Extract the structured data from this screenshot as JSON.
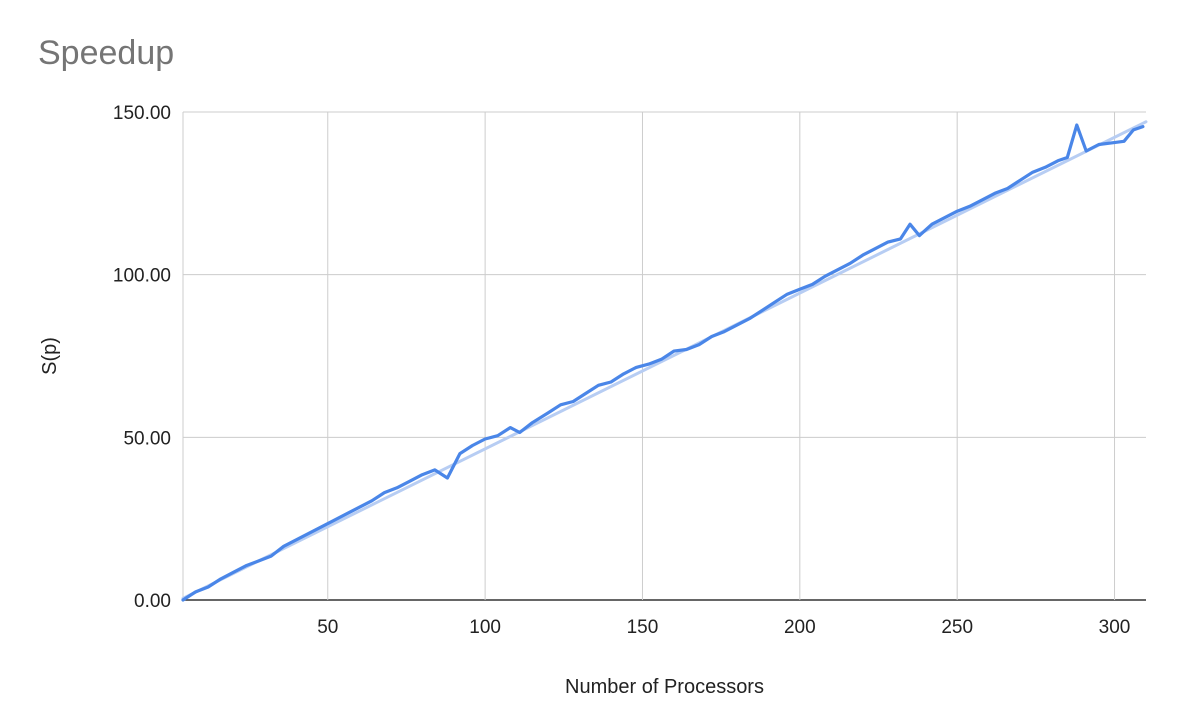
{
  "chart_data": {
    "type": "line",
    "title": "Speedup",
    "xlabel": "Number of Processors",
    "ylabel": "S(p)",
    "xlim": [
      4,
      310
    ],
    "ylim": [
      0,
      150
    ],
    "x_ticks": [
      50,
      100,
      150,
      200,
      250,
      300
    ],
    "y_ticks": [
      0,
      50,
      100,
      150
    ],
    "y_tick_labels": [
      "0.00",
      "50.00",
      "100.00",
      "150.00"
    ],
    "grid": true,
    "legend": "none",
    "colors": {
      "series": "#4a86e8",
      "trendline": "#b7cdf3",
      "grid": "#cccccc"
    },
    "series": [
      {
        "x": [
          4,
          8,
          12,
          16,
          20,
          24,
          28,
          32,
          36,
          40,
          44,
          48,
          52,
          56,
          60,
          64,
          68,
          72,
          76,
          80,
          84,
          88,
          92,
          96,
          100,
          104,
          108,
          111,
          115,
          120,
          124,
          128,
          132,
          136,
          140,
          144,
          148,
          152,
          156,
          160,
          164,
          168,
          172,
          176,
          180,
          184,
          188,
          192,
          196,
          200,
          204,
          208,
          212,
          216,
          220,
          224,
          228,
          232,
          235,
          238,
          242,
          246,
          250,
          254,
          258,
          262,
          266,
          270,
          274,
          278,
          282,
          285,
          288,
          291,
          295,
          299,
          303,
          306,
          309
        ],
        "values": [
          0,
          2.5,
          4,
          6.5,
          8.5,
          10.5,
          12,
          13.5,
          16.5,
          18.5,
          20.5,
          22.5,
          24.5,
          26.5,
          28.5,
          30.5,
          33,
          34.5,
          36.5,
          38.5,
          40,
          37.5,
          45,
          47.5,
          49.5,
          50.5,
          53,
          51.5,
          54.5,
          57.5,
          60,
          61,
          63.5,
          66,
          67,
          69.5,
          71.5,
          72.5,
          74,
          76.5,
          77,
          78.5,
          81,
          82.5,
          84.5,
          86.5,
          89,
          91.5,
          94,
          95.5,
          97,
          99.5,
          101.5,
          103.5,
          106,
          108,
          110,
          111,
          115.5,
          112,
          115.5,
          117.5,
          119.5,
          121,
          123,
          125,
          126.5,
          129,
          131.5,
          133,
          135,
          136,
          146,
          138,
          140,
          140.5,
          141,
          144.5,
          145.5
        ]
      }
    ],
    "trendline": {
      "x": [
        4,
        310
      ],
      "y": [
        0.5,
        147
      ]
    }
  }
}
